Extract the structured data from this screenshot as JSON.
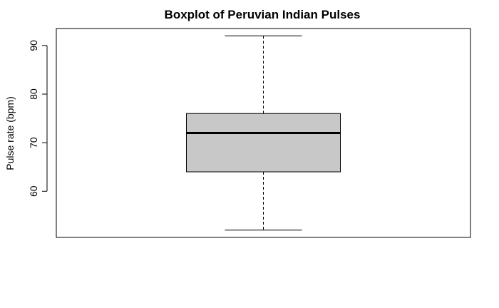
{
  "chart_data": {
    "type": "boxplot",
    "title": "Boxplot of Peruvian Indian Pulses",
    "xlabel": "",
    "ylabel": "Pulse rate (bpm)",
    "ylim": [
      50.5,
      93.5
    ],
    "y_ticks": [
      60,
      70,
      80,
      90
    ],
    "y_tick_labels": [
      "60",
      "70",
      "80",
      "90"
    ],
    "grid": false,
    "boxes": [
      {
        "whisker_low": 52,
        "q1": 64,
        "median": 72,
        "q3": 76,
        "whisker_high": 92
      }
    ],
    "colors": {
      "box_fill": "#c8c8c8",
      "stroke": "#000000"
    }
  }
}
